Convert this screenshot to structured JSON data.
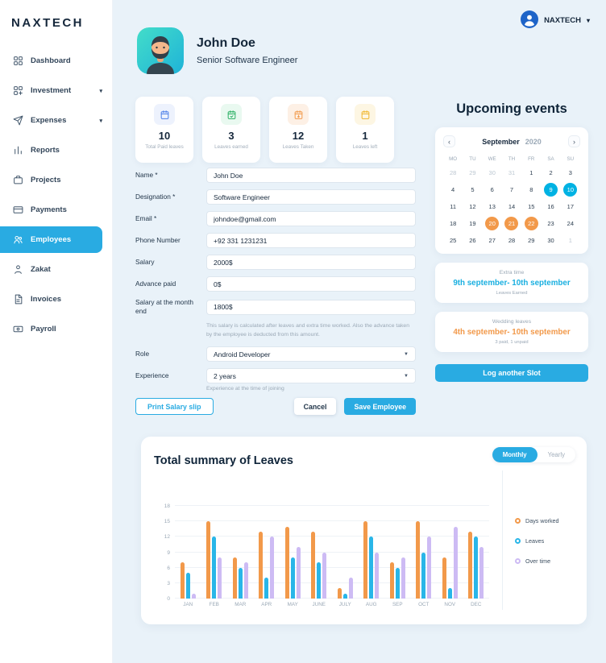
{
  "colors": {
    "accent_blue": "#29ABE2",
    "calendar_blue": "#00B2E3",
    "calendar_orange": "#F2994A",
    "stat_blue": "#4A7DE8",
    "stat_green": "#27AE60",
    "stat_orange": "#F2994A",
    "stat_yellow": "#F0B429"
  },
  "sidebar": {
    "logo": "NAXTECH",
    "items": [
      {
        "label": "Dashboard"
      },
      {
        "label": "Investment",
        "chevron": true
      },
      {
        "label": "Expenses",
        "chevron": true
      },
      {
        "label": "Reports"
      },
      {
        "label": "Projects"
      },
      {
        "label": "Payments"
      },
      {
        "label": "Employees",
        "active": true
      },
      {
        "label": "Zakat"
      },
      {
        "label": "Invoices"
      },
      {
        "label": "Payroll"
      }
    ]
  },
  "header": {
    "account_label": "NAXTECH"
  },
  "profile": {
    "name": "John Doe",
    "title": "Senior Software Engineer"
  },
  "stats": [
    {
      "value": "10",
      "label": "Total Paid leaves"
    },
    {
      "value": "3",
      "label": "Leaves earned"
    },
    {
      "value": "12",
      "label": "Leaves Taken"
    },
    {
      "value": "1",
      "label": "Leaves left"
    }
  ],
  "form": {
    "name": {
      "label": "Name *",
      "value": "John Doe"
    },
    "designation": {
      "label": "Designation *",
      "value": "Software Engineer"
    },
    "email": {
      "label": "Email *",
      "value": "johndoe@gmail.com"
    },
    "phone": {
      "label": "Phone Number",
      "value": "+92 331 1231231"
    },
    "salary": {
      "label": "Salary",
      "value": "2000$"
    },
    "advance": {
      "label": "Advance paid",
      "value": "0$"
    },
    "month_end": {
      "label": "Salary at the month end",
      "value": "1800$",
      "note": "This salary is calculated after leaves and extra time worked. Also the advance taken by the employee is deducted from this amount."
    },
    "role": {
      "label": "Role",
      "value": "Android Developer"
    },
    "experience": {
      "label": "Experience",
      "value": "2 years",
      "note": "Experience at the time of joining"
    },
    "print_button": "Print Salary slip",
    "cancel_button": "Cancel",
    "save_button": "Save Employee"
  },
  "events": {
    "title": "Upcoming events",
    "calendar": {
      "month": "September",
      "year": "2020",
      "day_headers": [
        "MO",
        "TU",
        "WE",
        "TH",
        "FR",
        "SA",
        "SU"
      ],
      "weeks": [
        [
          {
            "d": "28",
            "t": "muted"
          },
          {
            "d": "29",
            "t": "muted"
          },
          {
            "d": "30",
            "t": "muted"
          },
          {
            "d": "31",
            "t": "muted"
          },
          {
            "d": "1"
          },
          {
            "d": "2"
          },
          {
            "d": "3"
          }
        ],
        [
          {
            "d": "4"
          },
          {
            "d": "5"
          },
          {
            "d": "6"
          },
          {
            "d": "7"
          },
          {
            "d": "8"
          },
          {
            "d": "9",
            "t": "blue"
          },
          {
            "d": "10",
            "t": "blue"
          }
        ],
        [
          {
            "d": "11"
          },
          {
            "d": "12"
          },
          {
            "d": "13"
          },
          {
            "d": "14"
          },
          {
            "d": "15"
          },
          {
            "d": "16"
          },
          {
            "d": "17"
          }
        ],
        [
          {
            "d": "18"
          },
          {
            "d": "19"
          },
          {
            "d": "20",
            "t": "orange"
          },
          {
            "d": "21",
            "t": "orange"
          },
          {
            "d": "22",
            "t": "orange"
          },
          {
            "d": "23"
          },
          {
            "d": "24"
          }
        ],
        [
          {
            "d": "25"
          },
          {
            "d": "26"
          },
          {
            "d": "27"
          },
          {
            "d": "28"
          },
          {
            "d": "29"
          },
          {
            "d": "30"
          },
          {
            "d": "1",
            "t": "muted"
          }
        ]
      ]
    },
    "cards": [
      {
        "tag": "Extra time",
        "range": "9th september- 10th september",
        "note": "Leaves Earned",
        "accent": "#19AFE0"
      },
      {
        "tag": "Wedding leaves",
        "range": "4th september- 10th september",
        "note": "3 paid, 1 unpaid",
        "accent": "#F2994A"
      }
    ],
    "log_button": "Log another Slot"
  },
  "chart_data": {
    "type": "bar",
    "title": "Total summary of Leaves",
    "toggle": {
      "monthly": "Monthly",
      "yearly": "Yearly",
      "selected": "Monthly"
    },
    "categories": [
      "JAN",
      "FEB",
      "MAR",
      "APR",
      "MAY",
      "JUNE",
      "JULY",
      "AUG",
      "SEP",
      "OCT",
      "NOV",
      "DEC"
    ],
    "series": [
      {
        "name": "Days worked",
        "color": "#F2994A",
        "values": [
          7,
          15,
          8,
          13,
          14,
          13,
          2,
          15,
          7,
          15,
          8,
          13
        ]
      },
      {
        "name": "Leaves",
        "color": "#29B6E8",
        "values": [
          5,
          12,
          6,
          4,
          8,
          7,
          1,
          12,
          6,
          9,
          2,
          12
        ]
      },
      {
        "name": "Over time",
        "color": "#CDBBF4",
        "values": [
          1,
          8,
          7,
          12,
          10,
          9,
          4,
          9,
          8,
          12,
          14,
          10
        ]
      }
    ],
    "ylim": [
      0,
      18
    ],
    "yticks": [
      0,
      3,
      6,
      9,
      12,
      15,
      18
    ],
    "xlabel": "",
    "ylabel": "",
    "legend_position": "right",
    "grid": true
  }
}
